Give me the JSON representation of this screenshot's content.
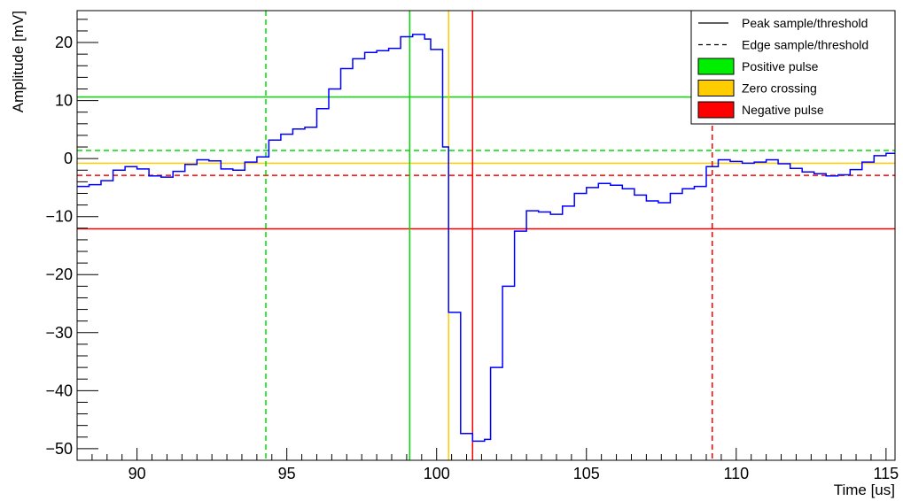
{
  "chart_data": {
    "type": "line",
    "title": "",
    "xlabel": "Time [us]",
    "ylabel": "Amplitude [mV]",
    "xlim": [
      88,
      115.3
    ],
    "ylim": [
      -52,
      25.5
    ],
    "x_ticks": [
      90,
      95,
      100,
      105,
      110,
      115
    ],
    "x_tick_labels": [
      "90",
      "95",
      "100",
      "105",
      "110",
      "115"
    ],
    "y_ticks": [
      20,
      10,
      0,
      -10,
      -20,
      -30,
      -40,
      -50
    ],
    "y_tick_labels": [
      "20",
      "10",
      "0",
      "−10",
      "−20",
      "−30",
      "−40",
      "−50"
    ],
    "grid": false,
    "legend_position": "top-right",
    "series": [
      {
        "style": "step",
        "color": "#0000ff",
        "x": [
          88.0,
          88.4,
          88.8,
          89.2,
          89.6,
          90.0,
          90.4,
          90.8,
          91.2,
          91.6,
          92.0,
          92.4,
          92.8,
          93.2,
          93.6,
          94.0,
          94.4,
          94.8,
          95.2,
          95.6,
          96.0,
          96.4,
          96.8,
          97.2,
          97.6,
          98.0,
          98.4,
          98.8,
          99.2,
          99.6,
          99.8,
          100.2,
          100.4,
          100.8,
          101.2,
          101.6,
          101.8,
          102.2,
          102.6,
          103.0,
          103.4,
          103.8,
          104.2,
          104.6,
          105.0,
          105.4,
          105.8,
          106.2,
          106.6,
          107.0,
          107.4,
          107.8,
          108.2,
          108.6,
          109.0,
          109.4,
          109.8,
          110.2,
          110.6,
          111.0,
          111.4,
          111.8,
          112.2,
          112.6,
          113.0,
          113.4,
          113.8,
          114.2,
          114.6,
          115.0
        ],
        "y": [
          -4.8,
          -4.5,
          -3.8,
          -2.0,
          -1.4,
          -1.8,
          -3.0,
          -3.2,
          -2.2,
          -1.0,
          -0.2,
          -0.4,
          -1.8,
          -2.0,
          -0.6,
          0.3,
          3.2,
          4.2,
          5.1,
          5.4,
          8.6,
          12.0,
          15.5,
          17.2,
          18.3,
          18.6,
          19.0,
          21.0,
          21.4,
          20.6,
          18.8,
          2.0,
          -26.5,
          -47.4,
          -48.7,
          -48.4,
          -36.0,
          -22.0,
          -12.5,
          -9.0,
          -9.2,
          -9.6,
          -8.2,
          -6.0,
          -5.0,
          -4.3,
          -4.6,
          -5.2,
          -6.3,
          -7.3,
          -7.6,
          -6.0,
          -5.2,
          -4.8,
          -1.4,
          -0.2,
          -0.5,
          -0.8,
          -0.6,
          -0.2,
          -0.9,
          -1.7,
          -2.3,
          -2.6,
          -3.0,
          -2.8,
          -1.9,
          -0.6,
          0.5,
          0.9
        ],
        "x_end": 115.3
      }
    ],
    "reference_lines": [
      {
        "orientation": "horizontal",
        "value": 10.6,
        "color": "#00dd00",
        "dashed": false
      },
      {
        "orientation": "horizontal",
        "value": 1.4,
        "color": "#00dd00",
        "dashed": true
      },
      {
        "orientation": "horizontal",
        "value": -0.8,
        "color": "#ffcc00",
        "dashed": false
      },
      {
        "orientation": "horizontal",
        "value": -2.9,
        "color": "#ff0000",
        "dashed": true
      },
      {
        "orientation": "horizontal",
        "value": -12.1,
        "color": "#ff0000",
        "dashed": false
      },
      {
        "orientation": "vertical",
        "value": 94.3,
        "color": "#00dd00",
        "dashed": true
      },
      {
        "orientation": "vertical",
        "value": 99.1,
        "color": "#00dd00",
        "dashed": false
      },
      {
        "orientation": "vertical",
        "value": 100.4,
        "color": "#ffcc00",
        "dashed": false
      },
      {
        "orientation": "vertical",
        "value": 101.2,
        "color": "#ff0000",
        "dashed": false
      },
      {
        "orientation": "vertical",
        "value": 109.2,
        "color": "#ff0000",
        "dashed": true
      }
    ],
    "legend": [
      {
        "label": "Peak sample/threshold",
        "kind": "line",
        "dashed": false,
        "color": "#000000"
      },
      {
        "label": "Edge sample/threshold",
        "kind": "line",
        "dashed": true,
        "color": "#000000"
      },
      {
        "label": "Positive pulse",
        "kind": "box",
        "color": "#00ee00"
      },
      {
        "label": "Zero crossing",
        "kind": "box",
        "color": "#ffcc00"
      },
      {
        "label": "Negative pulse",
        "kind": "box",
        "color": "#ff0000"
      }
    ]
  }
}
